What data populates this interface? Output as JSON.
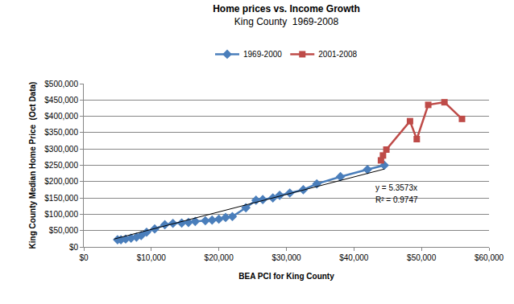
{
  "chart_data": {
    "type": "line",
    "title": "Home prices vs. Income Growth",
    "subtitle": "King County  1969-2008",
    "x_label": "BEA PCI for King County",
    "y_label": "King County Median Home Price  (Oct Data)",
    "legend": "top",
    "grid": true,
    "xlim": [
      0,
      60000
    ],
    "xticks": [
      {
        "value": 0,
        "label": "$0"
      },
      {
        "value": 10000,
        "label": "$10,000"
      },
      {
        "value": 20000,
        "label": "$20,000"
      },
      {
        "value": 30000,
        "label": "$30,000"
      },
      {
        "value": 40000,
        "label": "$40,000"
      },
      {
        "value": 50000,
        "label": "$50,000"
      },
      {
        "value": 60000,
        "label": "$60,000"
      }
    ],
    "ylim": [
      0,
      500000
    ],
    "yticks": [
      {
        "value": 0,
        "label": "$0"
      },
      {
        "value": 50000,
        "label": "$50,000"
      },
      {
        "value": 100000,
        "label": "$100,000"
      },
      {
        "value": 150000,
        "label": "$150,000"
      },
      {
        "value": 200000,
        "label": "$200,000"
      },
      {
        "value": 250000,
        "label": "$250,000"
      },
      {
        "value": 300000,
        "label": "$300,000"
      },
      {
        "value": 350000,
        "label": "$350,000"
      },
      {
        "value": 400000,
        "label": "$400,000"
      },
      {
        "value": 450000,
        "label": "$450,000"
      },
      {
        "value": 500000,
        "label": "$500,000"
      }
    ],
    "series": [
      {
        "name": "1969-2000",
        "color": "#4a7ebb",
        "marker": "diamond",
        "x": [
          5000,
          5500,
          6200,
          7000,
          7800,
          8500,
          9300,
          10500,
          12000,
          13200,
          14500,
          15500,
          16500,
          18000,
          19000,
          20000,
          21000,
          22000,
          24000,
          25500,
          26500,
          28000,
          29000,
          30500,
          32500,
          34500,
          38000,
          42000,
          44500
        ],
        "values": [
          22000,
          22000,
          24000,
          27000,
          30000,
          35000,
          45000,
          55000,
          68000,
          72000,
          73000,
          75000,
          78000,
          80000,
          82000,
          85000,
          90000,
          93000,
          120000,
          143000,
          145000,
          150000,
          158000,
          165000,
          175000,
          193000,
          215000,
          237000,
          250000
        ]
      },
      {
        "name": "2001-2008",
        "color": "#be4b48",
        "marker": "square",
        "x": [
          44000,
          44300,
          44800,
          48300,
          49300,
          51000,
          53400,
          56000
        ],
        "values": [
          265000,
          280000,
          298000,
          385000,
          330000,
          435000,
          443000,
          392000
        ]
      }
    ],
    "trendline": {
      "color": "#000000",
      "x": [
        4500,
        44500
      ],
      "values": [
        24108,
        238400
      ]
    },
    "annotations": [
      "y = 5.3573x",
      "R² = 0.9747"
    ]
  }
}
